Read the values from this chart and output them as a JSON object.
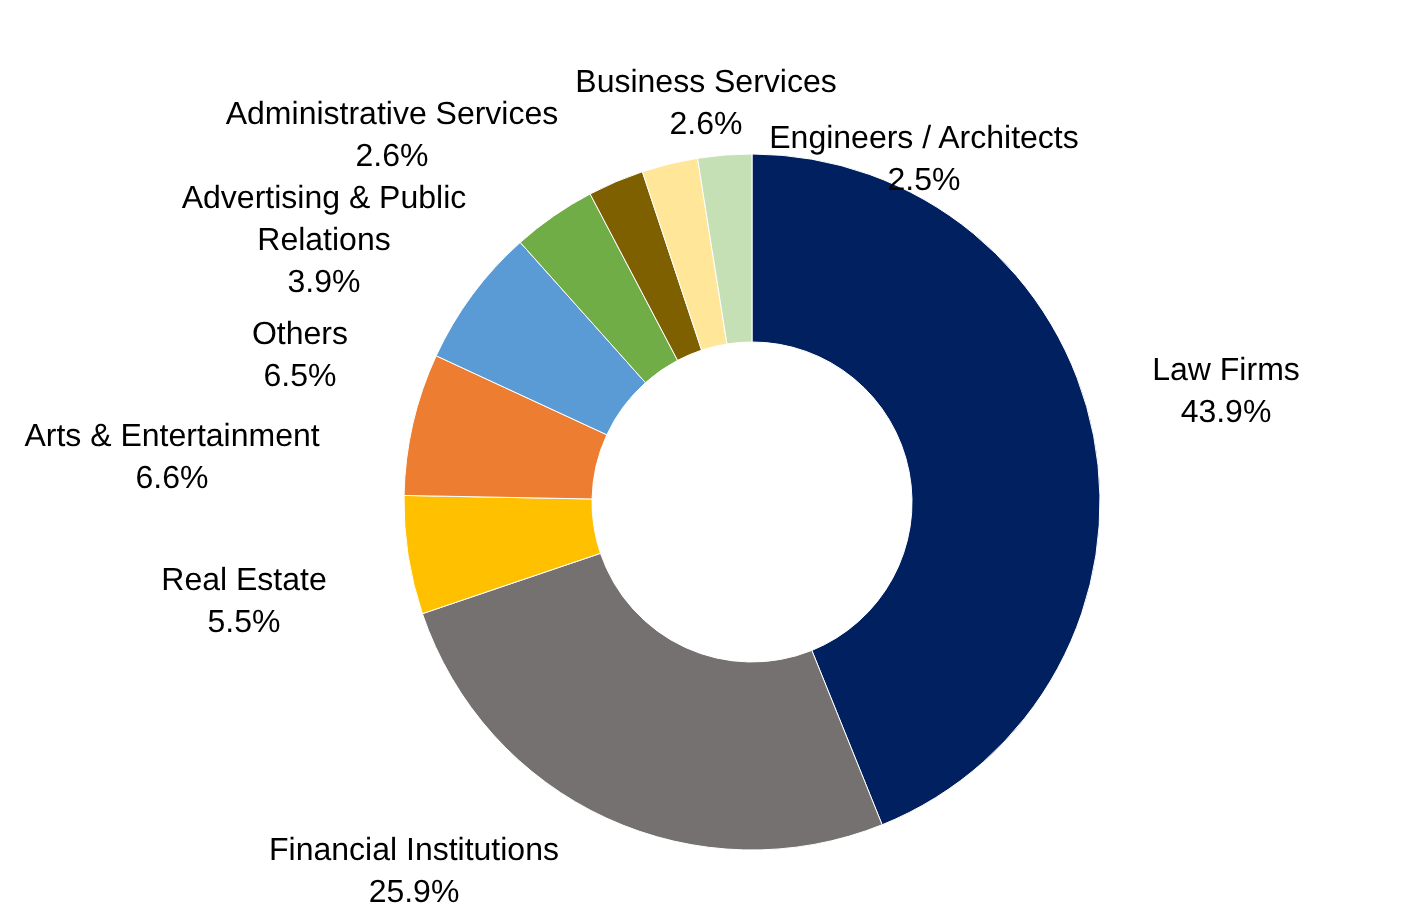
{
  "chart_data": {
    "type": "donut",
    "categories": [
      "Law Firms",
      "Financial Institutions",
      "Real Estate",
      "Arts & Entertainment",
      "Others",
      "Advertising & Public Relations",
      "Administrative Services",
      "Business Services",
      "Engineers / Architects"
    ],
    "values": [
      43.9,
      25.9,
      5.5,
      6.6,
      6.5,
      3.9,
      2.6,
      2.6,
      2.5
    ],
    "value_labels": [
      "43.9%",
      "25.9%",
      "5.5%",
      "6.6%",
      "6.5%",
      "3.9%",
      "2.6%",
      "2.6%",
      "2.5%"
    ],
    "colors": [
      "#002060",
      "#767171",
      "#ffc000",
      "#ed7d31",
      "#5b9bd5",
      "#70ad47",
      "#7f6000",
      "#ffe699",
      "#c5e0b4"
    ]
  }
}
